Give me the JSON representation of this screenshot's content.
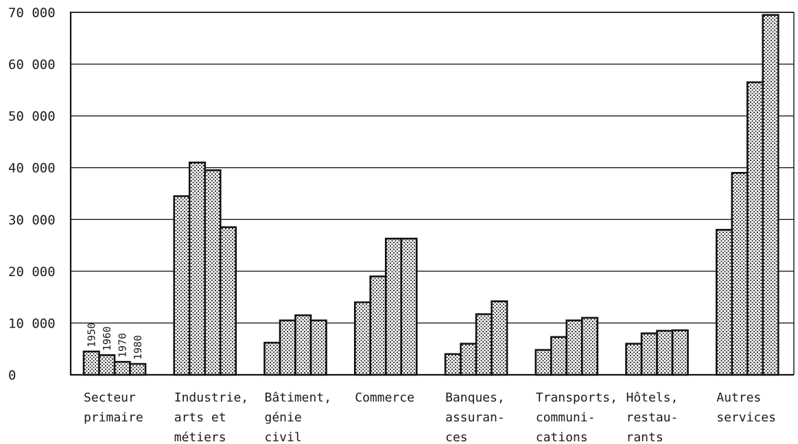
{
  "chart_data": {
    "type": "bar",
    "title": "",
    "xlabel": "",
    "ylabel": "",
    "ylim": [
      0,
      70000
    ],
    "yticks": [
      0,
      10000,
      20000,
      30000,
      40000,
      50000,
      60000,
      70000
    ],
    "ytick_labels": [
      "0",
      "10 000",
      "20 000",
      "30 000",
      "40 000",
      "50 000",
      "60 000",
      "70 000"
    ],
    "grid": true,
    "bar_pattern": "dotted",
    "bar_fill": "#ffffff",
    "bar_stroke": "#111111",
    "categories": [
      [
        "Secteur",
        "primaire"
      ],
      [
        "Industrie,",
        "arts et",
        "métiers"
      ],
      [
        "Bâtiment,",
        "génie",
        "civil"
      ],
      [
        "Commerce"
      ],
      [
        "Banques,",
        "assuran-",
        "ces"
      ],
      [
        "Transports,",
        "communi-",
        "cations"
      ],
      [
        "Hôtels,",
        "restau-",
        "rants"
      ],
      [
        "Autres",
        "services"
      ]
    ],
    "series": [
      {
        "name": "1950",
        "values": [
          4500,
          34500,
          6200,
          14000,
          4000,
          4800,
          6000,
          28000
        ]
      },
      {
        "name": "1960",
        "values": [
          3800,
          41000,
          10500,
          19000,
          6000,
          7300,
          8000,
          39000
        ]
      },
      {
        "name": "1970",
        "values": [
          2500,
          39500,
          11500,
          26300,
          11700,
          10500,
          8500,
          56500
        ]
      },
      {
        "name": "1980",
        "values": [
          2100,
          28500,
          10500,
          26300,
          14200,
          11000,
          8600,
          69500
        ]
      }
    ]
  }
}
